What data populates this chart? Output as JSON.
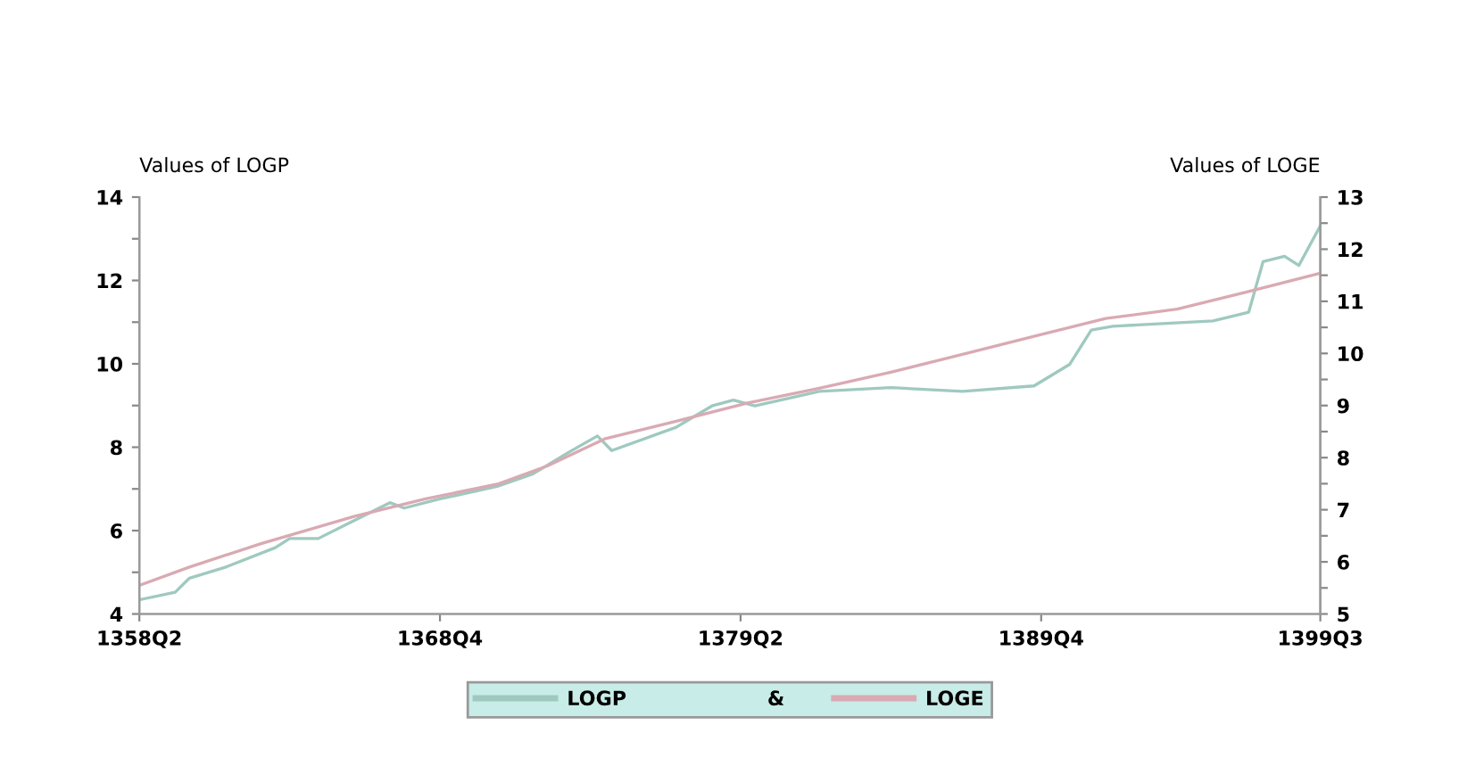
{
  "chart_data": {
    "type": "line",
    "ylabel": "Values of LOGP",
    "y2label": "Values of LOGE",
    "annotations": [
      "&"
    ],
    "legend": "bottom",
    "grid": false,
    "marker": "none",
    "line_style": "solid",
    "categories": [
      "1358Q2",
      null,
      null,
      null,
      null,
      null,
      null,
      null,
      null,
      null,
      null,
      null,
      null,
      null,
      null,
      null,
      null,
      null,
      null,
      null,
      null,
      null,
      null,
      null,
      null,
      null,
      null,
      null,
      null,
      null,
      null,
      null,
      null,
      null,
      null,
      null,
      null,
      null,
      null,
      null,
      null,
      null,
      "1368Q4",
      null,
      null,
      null,
      null,
      null,
      null,
      null,
      null,
      null,
      null,
      null,
      null,
      null,
      null,
      null,
      null,
      null,
      null,
      null,
      null,
      null,
      null,
      null,
      null,
      null,
      null,
      null,
      null,
      null,
      null,
      null,
      null,
      null,
      null,
      null,
      null,
      null,
      null,
      null,
      null,
      null,
      "1379Q2",
      null,
      null,
      null,
      null,
      null,
      null,
      null,
      null,
      null,
      null,
      null,
      null,
      null,
      null,
      null,
      null,
      null,
      null,
      null,
      null,
      null,
      null,
      null,
      null,
      null,
      null,
      null,
      null,
      null,
      null,
      null,
      null,
      null,
      null,
      null,
      null,
      null,
      null,
      null,
      null,
      null,
      "1389Q4",
      null,
      null,
      null,
      null,
      null,
      null,
      null,
      null,
      null,
      null,
      null,
      null,
      null,
      null,
      null,
      null,
      null,
      null,
      null,
      null,
      null,
      null,
      null,
      null,
      null,
      null,
      null,
      null,
      null,
      null,
      null,
      null,
      null,
      null,
      null,
      null,
      null,
      null,
      "1399Q3"
    ],
    "ylim": [
      4,
      14
    ],
    "yticks": [
      4,
      {
        "value": 5,
        "label": null
      },
      6,
      {
        "value": 7,
        "label": null
      },
      8,
      {
        "value": 9,
        "label": null
      },
      10,
      {
        "value": 11,
        "label": null
      },
      12,
      {
        "value": 13,
        "label": null
      },
      14
    ],
    "y2lim": [
      5,
      13
    ],
    "y2ticks": [
      5,
      {
        "value": 5.5,
        "label": null
      },
      6,
      {
        "value": 6.5,
        "label": null
      },
      7,
      {
        "value": 7.5,
        "label": null
      },
      8,
      {
        "value": 8.5,
        "label": null
      },
      9,
      {
        "value": 9.5,
        "label": null
      },
      10,
      {
        "value": 10.5,
        "label": null
      },
      11,
      {
        "value": 11.5,
        "label": null
      },
      12,
      {
        "value": 12.5,
        "label": null
      },
      13
    ],
    "series": [
      {
        "name": "LOGP",
        "color": "#9fc9bf",
        "values": [
          4.34,
          null,
          null,
          null,
          null,
          4.52,
          null,
          4.86,
          null,
          null,
          null,
          null,
          5.12,
          null,
          null,
          null,
          null,
          null,
          null,
          5.59,
          null,
          5.81,
          null,
          null,
          null,
          5.81,
          null,
          null,
          null,
          null,
          6.24,
          null,
          null,
          null,
          null,
          6.67,
          null,
          6.54,
          null,
          null,
          null,
          null,
          6.76,
          null,
          null,
          null,
          null,
          null,
          null,
          null,
          7.06,
          null,
          null,
          null,
          null,
          7.36,
          null,
          null,
          null,
          null,
          7.88,
          null,
          null,
          null,
          8.27,
          null,
          7.92,
          null,
          null,
          null,
          null,
          null,
          null,
          null,
          null,
          8.48,
          null,
          null,
          null,
          null,
          8.99,
          null,
          null,
          9.13,
          null,
          null,
          8.99,
          null,
          null,
          null,
          null,
          null,
          null,
          null,
          null,
          9.34,
          null,
          null,
          null,
          null,
          null,
          null,
          null,
          null,
          null,
          9.43,
          null,
          null,
          null,
          null,
          null,
          null,
          null,
          null,
          null,
          9.34,
          null,
          null,
          null,
          null,
          null,
          null,
          null,
          null,
          null,
          9.47,
          null,
          null,
          null,
          null,
          9.99,
          null,
          null,
          10.81,
          null,
          null,
          10.9,
          null,
          null,
          null,
          10.94,
          null,
          null,
          null,
          null,
          null,
          null,
          null,
          null,
          null,
          11.03,
          null,
          null,
          null,
          null,
          11.24,
          null,
          12.45,
          null,
          null,
          12.58,
          null,
          12.36,
          null,
          null,
          13.31
        ]
      },
      {
        "name": "LOGE",
        "color": "#d9aab3",
        "axis": "y2",
        "values": [
          5.55,
          null,
          null,
          null,
          null,
          null,
          null,
          5.9,
          null,
          null,
          null,
          null,
          null,
          null,
          null,
          null,
          null,
          6.35,
          null,
          null,
          null,
          null,
          null,
          null,
          null,
          null,
          null,
          null,
          null,
          null,
          6.87,
          null,
          null,
          null,
          null,
          null,
          null,
          null,
          null,
          null,
          7.21,
          null,
          null,
          null,
          null,
          null,
          null,
          null,
          null,
          null,
          7.49,
          null,
          null,
          null,
          null,
          null,
          null,
          7.84,
          null,
          null,
          null,
          null,
          null,
          null,
          null,
          8.36,
          null,
          null,
          null,
          null,
          null,
          null,
          null,
          null,
          null,
          8.7,
          null,
          null,
          null,
          null,
          null,
          null,
          null,
          null,
          null,
          9.05,
          null,
          null,
          null,
          null,
          null,
          null,
          null,
          null,
          null,
          9.33,
          null,
          null,
          null,
          null,
          null,
          null,
          null,
          null,
          null,
          9.64,
          null,
          null,
          null,
          null,
          null,
          null,
          null,
          null,
          null,
          9.98,
          null,
          null,
          null,
          null,
          null,
          null,
          null,
          null,
          null,
          10.33,
          null,
          null,
          null,
          null,
          null,
          null,
          null,
          null,
          null,
          10.67,
          null,
          null,
          null,
          null,
          null,
          null,
          null,
          null,
          null,
          10.85,
          null,
          null,
          null,
          null,
          null,
          null,
          null,
          null,
          null,
          11.19,
          null,
          null,
          null,
          null,
          null,
          null,
          null,
          null,
          null,
          11.54
        ]
      }
    ]
  }
}
